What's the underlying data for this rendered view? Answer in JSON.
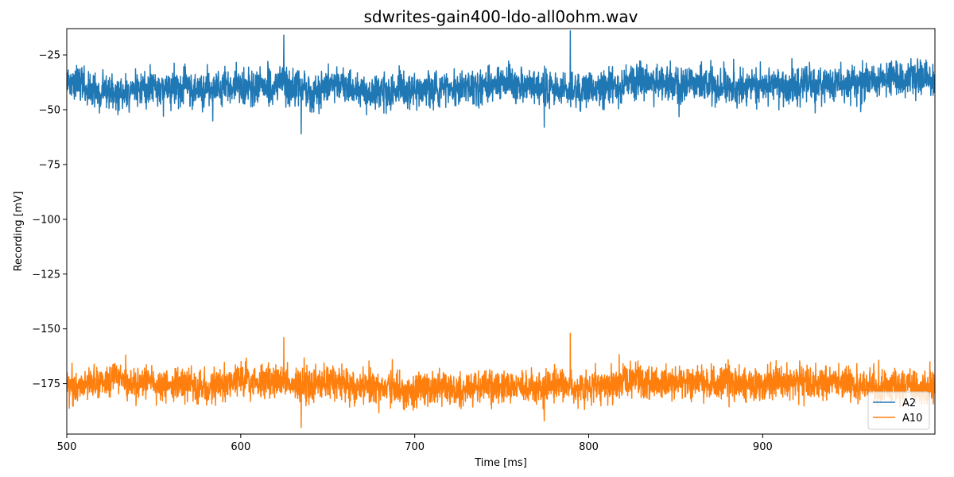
{
  "chart_data": {
    "type": "line",
    "title": "sdwrites-gain400-ldo-all0ohm.wav",
    "xlabel": "Time [ms]",
    "ylabel": "Recording [mV]",
    "xlim": [
      500,
      999
    ],
    "ylim": [
      -198,
      -13
    ],
    "xticks": [
      500,
      600,
      700,
      800,
      900
    ],
    "yticks": [
      -25,
      -50,
      -75,
      -100,
      -125,
      -150,
      -175
    ],
    "xtick_labels": [
      "500",
      "600",
      "700",
      "800",
      "900"
    ],
    "ytick_labels": [
      "−25",
      "−50",
      "−75",
      "−100",
      "−125",
      "−150",
      "−175"
    ],
    "grid": false,
    "legend_position": "lower-right",
    "series": [
      {
        "name": "A2",
        "color": "#1f77b4",
        "x_start": 500,
        "x_end": 999,
        "mean": -38.5,
        "envelope_upper": -26,
        "envelope_lower": -51,
        "peak_max": -16,
        "peak_min": -61
      },
      {
        "name": "A10",
        "color": "#ff7f0e",
        "x_start": 500,
        "x_end": 999,
        "mean": -176,
        "envelope_upper": -164,
        "envelope_lower": -188,
        "peak_max": -154,
        "peak_min": -195
      }
    ]
  }
}
